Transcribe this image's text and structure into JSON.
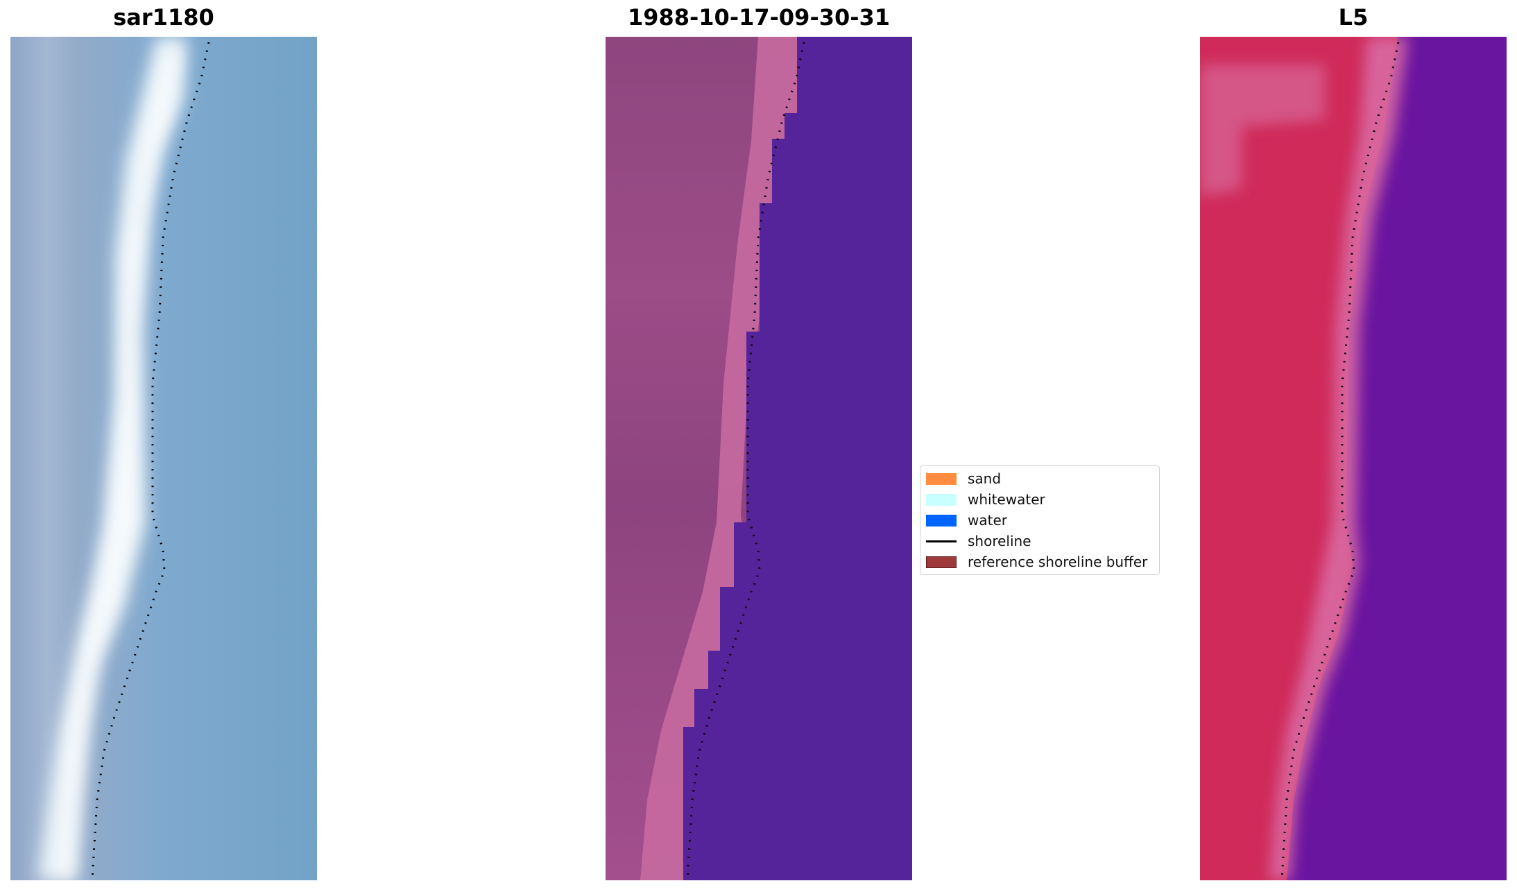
{
  "panels": [
    {
      "id": "rgb",
      "title": "sar1180"
    },
    {
      "id": "classified",
      "title": "1988-10-17-09-30-31"
    },
    {
      "id": "index",
      "title": "L5"
    }
  ],
  "legend": {
    "entries": [
      {
        "label": "sand",
        "kind": "patch",
        "color": "#ff8c40"
      },
      {
        "label": "whitewater",
        "kind": "patch",
        "color": "#c8ffff"
      },
      {
        "label": "water",
        "kind": "patch",
        "color": "#0064ff"
      },
      {
        "label": "shoreline",
        "kind": "line",
        "color": "#000000"
      },
      {
        "label": "reference shoreline buffer",
        "kind": "patch",
        "color": "#9e3a3a"
      }
    ]
  },
  "colors": {
    "rgb_water": "#7aa9cc",
    "rgb_foam": "#eef8fb",
    "classified_land": "#9a4a85",
    "classified_buffer": "#c46a9e",
    "classified_water": "#55249a",
    "index_land": "#d0285a",
    "index_buffer": "#d76a9a",
    "index_water": "#6a15a0",
    "shoreline_dots": "#000000"
  }
}
